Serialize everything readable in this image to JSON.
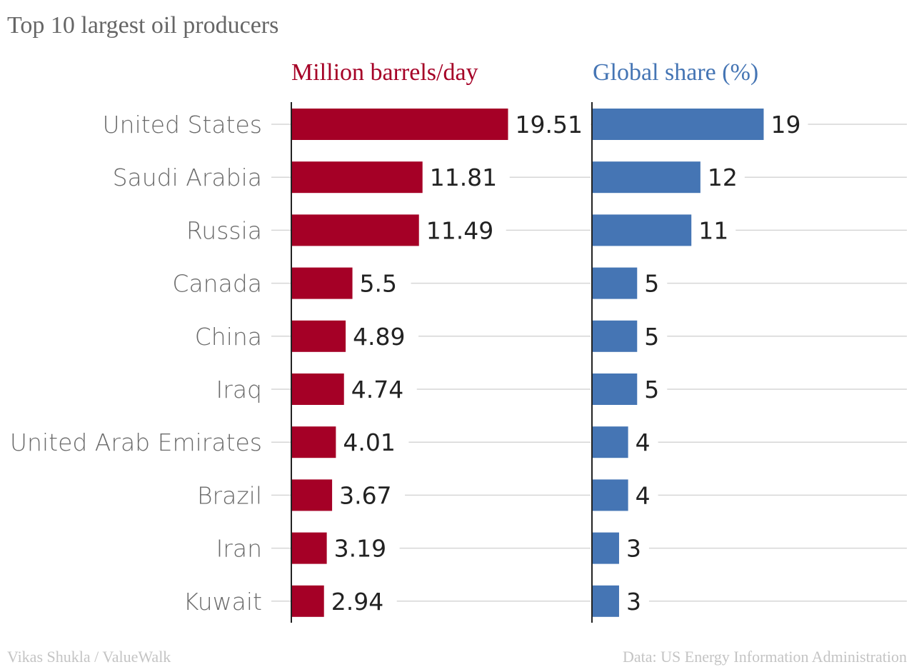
{
  "chart_data": {
    "type": "bar",
    "title": "Top 10 largest oil producers",
    "categories": [
      "United States",
      "Saudi Arabia",
      "Russia",
      "Canada",
      "China",
      "Iraq",
      "United Arab Emirates",
      "Brazil",
      "Iran",
      "Kuwait"
    ],
    "series": [
      {
        "name": "Million barrels/day",
        "values": [
          19.51,
          11.81,
          11.49,
          5.5,
          4.89,
          4.74,
          4.01,
          3.67,
          3.19,
          2.94
        ],
        "labels": [
          "19.51",
          "11.81",
          "11.49",
          "5.5",
          "4.89",
          "4.74",
          "4.01",
          "3.67",
          "3.19",
          "2.94"
        ],
        "color": "#a50026",
        "xlim": [
          0,
          36
        ]
      },
      {
        "name": "Global share (%)",
        "values": [
          19,
          12,
          11,
          5,
          5,
          5,
          4,
          4,
          3,
          3
        ],
        "labels": [
          "19",
          "12",
          "11",
          "5",
          "5",
          "5",
          "4",
          "4",
          "3",
          "3"
        ],
        "color": "#4575b4",
        "xlim": [
          0,
          35
        ]
      }
    ],
    "orientation": "horizontal",
    "grid": true
  },
  "footer": {
    "left": "Vikas Shukla / ValueWalk",
    "right": "Data: US Energy Information Administration"
  }
}
